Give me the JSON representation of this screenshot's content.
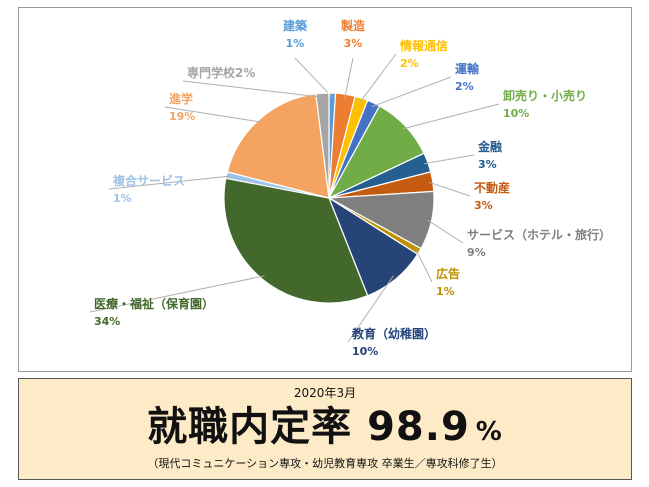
{
  "chart_data": {
    "type": "pie",
    "title": "",
    "slices": [
      {
        "label": "建築",
        "value": 1,
        "color": "#5b9bd5"
      },
      {
        "label": "製造",
        "value": 3,
        "color": "#ed7d31"
      },
      {
        "label": "情報通信",
        "value": 2,
        "color": "#ffc000"
      },
      {
        "label": "運輸",
        "value": 2,
        "color": "#4472c4"
      },
      {
        "label": "卸売り・小売り",
        "value": 10,
        "color": "#70ad47"
      },
      {
        "label": "金融",
        "value": 3,
        "color": "#255e91"
      },
      {
        "label": "不動産",
        "value": 3,
        "color": "#c55a11"
      },
      {
        "label": "サービス（ホテル・旅行）",
        "value": 9,
        "color": "#7f7f7f"
      },
      {
        "label": "広告",
        "value": 1,
        "color": "#bf8f00"
      },
      {
        "label": "教育（幼稚園）",
        "value": 10,
        "color": "#264478"
      },
      {
        "label": "医療・福祉（保育園）",
        "value": 34,
        "color": "#43682b"
      },
      {
        "label": "複合サービス",
        "value": 1,
        "color": "#9dc3e6"
      },
      {
        "label": "進学",
        "value": 19,
        "color": "#f4a460"
      },
      {
        "label": "専門学校",
        "value": 2,
        "color": "#a5a5a5"
      }
    ],
    "display": {
      "建築": {
        "name": "建築",
        "pct": "1%"
      },
      "製造": {
        "name": "製造",
        "pct": "3%"
      },
      "情報通信": {
        "name": "情報通信",
        "pct": "2%"
      },
      "運輸": {
        "name": "運輸",
        "pct": "2%"
      },
      "卸売り・小売り": {
        "name": "卸売り・小売り",
        "pct": "10%"
      },
      "金融": {
        "name": "金融",
        "pct": "3%"
      },
      "不動産": {
        "name": "不動産",
        "pct": "3%"
      },
      "サービス（ホテル・旅行）": {
        "name": "サービス（ホテル・旅行）",
        "pct": "9%"
      },
      "広告": {
        "name": "広告",
        "pct": "1%"
      },
      "教育（幼稚園）": {
        "name": "教育（幼稚園）",
        "pct": "10%"
      },
      "医療・福祉（保育園）": {
        "name": "医療・福祉（保育園）",
        "pct": "34%"
      },
      "複合サービス": {
        "name": "複合サービス",
        "pct": "1%"
      },
      "進学": {
        "name": "進学",
        "pct": "19%"
      },
      "専門学校": {
        "name": "専門学校2%",
        "pct": ""
      }
    }
  },
  "banner": {
    "date": "2020年3月",
    "headline": "就職内定率 98.9",
    "percent_sign": "%",
    "note": "（現代コミュニケーション専攻・幼児教育専攻 卒業生／専攻科修了生）"
  }
}
